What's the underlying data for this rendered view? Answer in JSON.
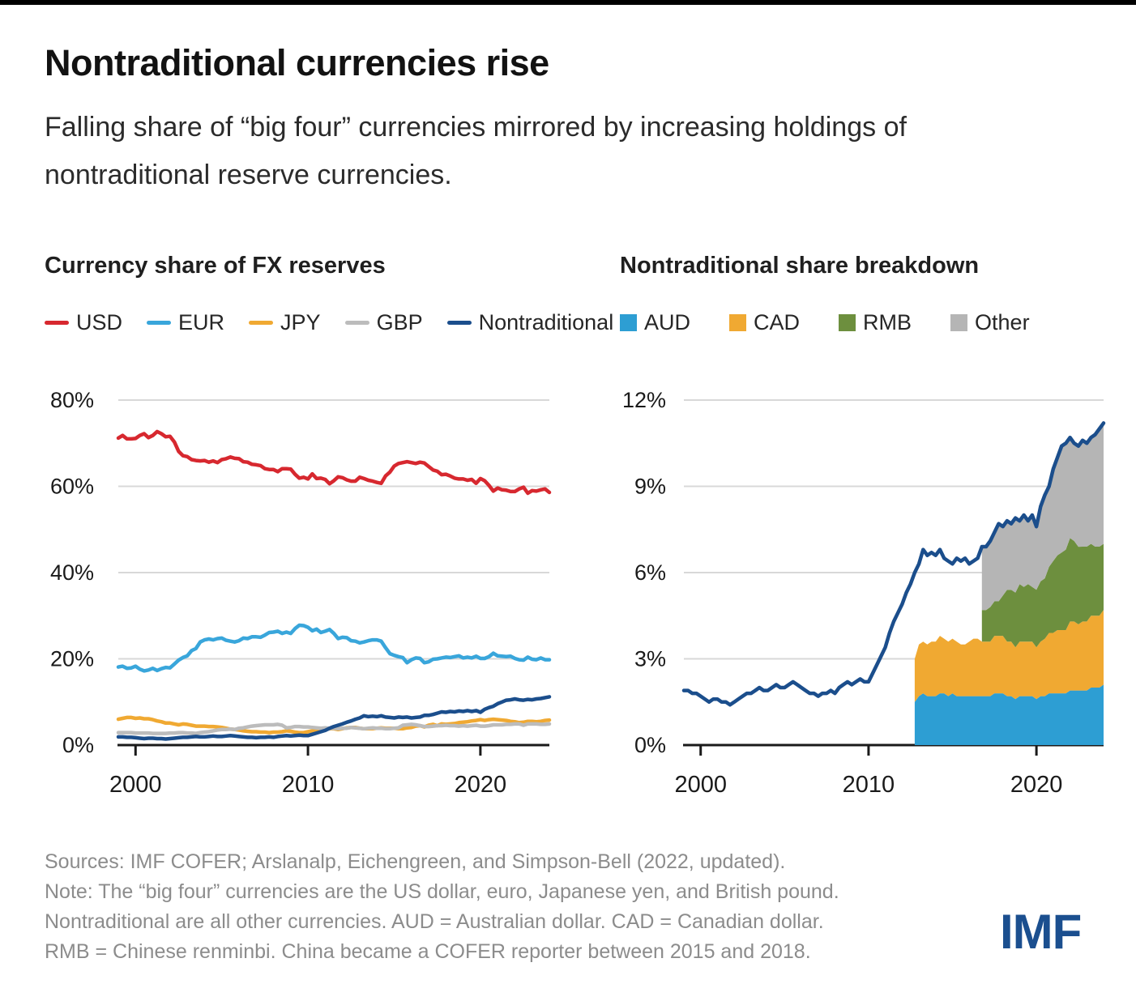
{
  "page": {
    "title": "Nontraditional currencies rise",
    "subtitle": "Falling share of “big four” currencies mirrored by increasing holdings of nontraditional reserve currencies.",
    "footer_lines": [
      "Sources: IMF COFER; Arslanalp, Eichengreen, and Simpson-Bell (2022, updated).",
      "Note: The “big four” currencies are the US dollar, euro, Japanese yen, and British pound.",
      "Nontraditional are all other currencies. AUD = Australian dollar. CAD = Canadian dollar.",
      "RMB = Chinese renminbi. China became a COFER reporter between 2015 and 2018."
    ],
    "logo": "IMF"
  },
  "colors": {
    "grid": "#d8d8d8",
    "axis": "#1a1a1a",
    "tick_label": "#1a1a1a",
    "footer_gray": "#8c8c8c",
    "logo_blue": "#1b4f8f"
  },
  "chart_data": [
    {
      "type": "line",
      "title": "Currency share of FX reserves",
      "quarters": "1999Q1–2024Q1",
      "x_start": 1999,
      "x_step": 0.25,
      "n_points": 101,
      "x_axis": {
        "ticks": [
          2000,
          2010,
          2020
        ],
        "labels": [
          "2000",
          "2010",
          "2020"
        ]
      },
      "y_axis": {
        "ticks": [
          0,
          20,
          40,
          60,
          80
        ],
        "labels": [
          "0%",
          "20%",
          "40%",
          "60%",
          "80%"
        ],
        "lim": [
          0,
          80
        ]
      },
      "grid": true,
      "legend_position": "top",
      "series": [
        {
          "name": "USD",
          "color": "#d7282f",
          "values": [
            71.2,
            71.8,
            71.0,
            71.0,
            71.1,
            71.8,
            72.2,
            71.3,
            71.8,
            72.7,
            72.2,
            71.5,
            71.6,
            70.3,
            68.1,
            67.1,
            66.9,
            66.2,
            66.0,
            65.9,
            66.0,
            65.6,
            65.9,
            65.5,
            66.2,
            66.4,
            66.8,
            66.5,
            66.4,
            65.7,
            65.6,
            65.1,
            65.0,
            64.8,
            64.1,
            63.9,
            63.9,
            63.4,
            64.1,
            64.1,
            64.0,
            62.8,
            61.9,
            62.1,
            61.7,
            62.9,
            61.8,
            61.9,
            61.6,
            60.6,
            61.3,
            62.2,
            62.0,
            61.5,
            61.2,
            61.2,
            62.1,
            61.8,
            61.4,
            61.2,
            60.9,
            60.7,
            62.4,
            63.3,
            64.7,
            65.3,
            65.5,
            65.7,
            65.5,
            65.3,
            65.6,
            65.4,
            64.6,
            63.8,
            63.5,
            62.7,
            62.8,
            62.4,
            61.9,
            61.7,
            61.7,
            61.4,
            61.6,
            60.7,
            61.8,
            61.3,
            60.2,
            58.9,
            59.6,
            59.2,
            59.1,
            58.8,
            58.8,
            59.4,
            59.8,
            58.4,
            59.0,
            58.9,
            59.2,
            59.4,
            58.6
          ]
        },
        {
          "name": "EUR",
          "color": "#39a6db",
          "values": [
            18.1,
            18.3,
            17.8,
            17.9,
            18.3,
            17.6,
            17.2,
            17.4,
            17.8,
            17.3,
            17.7,
            18.0,
            17.9,
            18.8,
            19.7,
            20.3,
            20.7,
            21.9,
            22.4,
            23.9,
            24.4,
            24.6,
            24.4,
            24.7,
            24.8,
            24.3,
            24.1,
            23.9,
            24.2,
            24.8,
            24.7,
            25.1,
            25.1,
            25.0,
            25.5,
            26.1,
            26.2,
            26.4,
            25.9,
            26.2,
            25.9,
            27.0,
            27.8,
            27.7,
            27.3,
            26.5,
            26.9,
            26.1,
            26.4,
            26.8,
            25.9,
            24.7,
            25.0,
            24.9,
            24.2,
            24.1,
            23.7,
            23.9,
            24.2,
            24.4,
            24.4,
            24.1,
            22.6,
            21.2,
            20.8,
            20.5,
            20.3,
            19.1,
            19.8,
            20.2,
            20.1,
            19.1,
            19.3,
            19.9,
            20.0,
            20.2,
            20.4,
            20.3,
            20.5,
            20.7,
            20.2,
            20.4,
            20.2,
            20.6,
            20.1,
            20.1,
            20.5,
            21.3,
            20.7,
            20.6,
            20.5,
            20.6,
            20.1,
            19.8,
            19.7,
            20.4,
            19.9,
            19.8,
            20.2,
            19.8,
            19.8
          ]
        },
        {
          "name": "JPY",
          "color": "#f0a932",
          "values": [
            6.0,
            6.2,
            6.4,
            6.4,
            6.2,
            6.3,
            6.1,
            6.1,
            5.9,
            5.6,
            5.4,
            5.1,
            5.1,
            4.9,
            4.7,
            4.9,
            4.8,
            4.6,
            4.4,
            4.4,
            4.4,
            4.3,
            4.3,
            4.2,
            4.1,
            3.9,
            3.7,
            3.6,
            3.5,
            3.3,
            3.2,
            3.1,
            3.1,
            3.0,
            3.0,
            2.9,
            3.0,
            3.0,
            3.1,
            3.3,
            3.2,
            3.0,
            2.9,
            2.9,
            3.1,
            3.3,
            3.5,
            3.7,
            3.7,
            3.8,
            3.8,
            3.6,
            3.8,
            4.0,
            4.1,
            4.1,
            3.9,
            3.8,
            3.8,
            3.8,
            3.9,
            4.0,
            3.9,
            3.9,
            3.9,
            3.8,
            3.8,
            4.0,
            4.1,
            4.4,
            4.5,
            4.2,
            4.6,
            4.8,
            4.5,
            4.9,
            4.8,
            4.9,
            5.0,
            5.2,
            5.3,
            5.4,
            5.6,
            5.7,
            5.9,
            5.7,
            5.9,
            6.0,
            5.9,
            5.8,
            5.7,
            5.5,
            5.4,
            5.2,
            5.3,
            5.5,
            5.5,
            5.4,
            5.5,
            5.7,
            5.8
          ]
        },
        {
          "name": "GBP",
          "color": "#bcbcbc",
          "values": [
            2.9,
            2.9,
            2.9,
            2.9,
            2.8,
            2.8,
            2.8,
            2.8,
            2.7,
            2.7,
            2.7,
            2.7,
            2.8,
            2.8,
            2.9,
            2.9,
            2.8,
            2.8,
            2.7,
            2.9,
            3.0,
            3.1,
            3.3,
            3.5,
            3.6,
            3.6,
            3.7,
            3.6,
            3.9,
            4.0,
            4.2,
            4.4,
            4.5,
            4.6,
            4.7,
            4.7,
            4.7,
            4.8,
            4.6,
            4.0,
            4.1,
            4.3,
            4.3,
            4.2,
            4.2,
            4.1,
            4.0,
            3.9,
            4.0,
            3.9,
            3.9,
            3.8,
            3.9,
            3.9,
            4.1,
            4.0,
            3.9,
            3.8,
            3.9,
            4.0,
            3.9,
            3.9,
            3.8,
            3.8,
            3.9,
            4.0,
            4.6,
            4.7,
            4.8,
            4.7,
            4.5,
            4.3,
            4.3,
            4.4,
            4.5,
            4.5,
            4.6,
            4.5,
            4.5,
            4.4,
            4.5,
            4.4,
            4.5,
            4.6,
            4.4,
            4.4,
            4.5,
            4.7,
            4.7,
            4.7,
            4.8,
            4.8,
            4.9,
            4.9,
            4.6,
            4.9,
            4.9,
            4.9,
            4.8,
            4.8,
            4.9
          ]
        },
        {
          "name": "Nontraditional",
          "color": "#1b4e8c",
          "values": [
            1.9,
            1.9,
            1.8,
            1.8,
            1.7,
            1.6,
            1.5,
            1.6,
            1.6,
            1.5,
            1.5,
            1.4,
            1.5,
            1.6,
            1.7,
            1.8,
            1.8,
            1.9,
            2.0,
            1.9,
            1.9,
            2.0,
            2.1,
            2.0,
            2.0,
            2.1,
            2.2,
            2.1,
            2.0,
            1.9,
            1.8,
            1.8,
            1.7,
            1.8,
            1.8,
            1.9,
            1.8,
            2.0,
            2.1,
            2.2,
            2.1,
            2.2,
            2.3,
            2.2,
            2.2,
            2.5,
            2.8,
            3.1,
            3.4,
            3.9,
            4.3,
            4.6,
            4.9,
            5.3,
            5.6,
            6.0,
            6.3,
            6.8,
            6.6,
            6.7,
            6.6,
            6.8,
            6.5,
            6.4,
            6.3,
            6.5,
            6.4,
            6.5,
            6.3,
            6.4,
            6.5,
            6.9,
            6.9,
            7.1,
            7.4,
            7.7,
            7.6,
            7.8,
            7.7,
            7.9,
            7.8,
            8.0,
            7.8,
            8.0,
            7.6,
            8.3,
            8.7,
            9.0,
            9.6,
            10.0,
            10.4,
            10.5,
            10.7,
            10.5,
            10.4,
            10.6,
            10.5,
            10.7,
            10.8,
            11.0,
            11.2
          ]
        }
      ]
    },
    {
      "type": "stacked-area-line",
      "title": "Nontraditional share breakdown",
      "quarters": "1999Q1–2024Q1",
      "x_start": 1999,
      "x_step": 0.25,
      "n_points": 101,
      "x_axis": {
        "ticks": [
          2000,
          2010,
          2020
        ],
        "labels": [
          "2000",
          "2010",
          "2020"
        ]
      },
      "y_axis": {
        "ticks": [
          0,
          3,
          6,
          9,
          12
        ],
        "labels": [
          "0%",
          "3%",
          "6%",
          "9%",
          "12%"
        ],
        "lim": [
          0,
          12
        ]
      },
      "grid": true,
      "legend_position": "top",
      "stack_series": [
        {
          "name": "AUD",
          "color": "#2d9ed3",
          "first_quarter": "2012Q4",
          "start_index": 55,
          "values": [
            1.5,
            1.7,
            1.8,
            1.7,
            1.7,
            1.7,
            1.8,
            1.8,
            1.7,
            1.8,
            1.7,
            1.7,
            1.7,
            1.7,
            1.7,
            1.7,
            1.7,
            1.7,
            1.7,
            1.8,
            1.8,
            1.8,
            1.7,
            1.7,
            1.6,
            1.7,
            1.7,
            1.7,
            1.7,
            1.6,
            1.7,
            1.7,
            1.8,
            1.8,
            1.8,
            1.8,
            1.8,
            1.9,
            1.9,
            1.9,
            1.9,
            1.9,
            2.0,
            2.0,
            2.0,
            2.1
          ]
        },
        {
          "name": "CAD",
          "color": "#f0a932",
          "first_quarter": "2012Q4",
          "start_index": 55,
          "values": [
            1.5,
            1.8,
            1.8,
            1.8,
            1.9,
            1.9,
            2.0,
            1.9,
            1.9,
            1.9,
            1.9,
            1.8,
            1.8,
            1.9,
            2.0,
            2.0,
            1.9,
            1.9,
            1.9,
            2.0,
            2.0,
            2.0,
            1.9,
            1.9,
            1.8,
            1.9,
            1.9,
            1.9,
            1.9,
            1.8,
            1.9,
            2.0,
            2.1,
            2.1,
            2.2,
            2.2,
            2.2,
            2.4,
            2.4,
            2.3,
            2.4,
            2.4,
            2.5,
            2.5,
            2.5,
            2.6
          ]
        },
        {
          "name": "RMB",
          "color": "#6d8f3e",
          "first_quarter": "2016Q4",
          "start_index": 71,
          "values": [
            1.1,
            1.1,
            1.2,
            1.2,
            1.2,
            1.4,
            1.8,
            1.8,
            1.9,
            2.0,
            1.9,
            2.0,
            1.9,
            2.0,
            2.1,
            2.1,
            2.3,
            2.5,
            2.6,
            2.7,
            2.8,
            2.9,
            2.8,
            2.7,
            2.6,
            2.6,
            2.5,
            2.4,
            2.4,
            2.3
          ]
        },
        {
          "name": "Other",
          "color": "#b5b5b5",
          "first_quarter": "2016Q4",
          "start_index": 71,
          "values": [
            2.2,
            2.2,
            2.3,
            2.4,
            2.7,
            2.4,
            2.4,
            2.3,
            2.6,
            2.2,
            2.5,
            2.2,
            2.5,
            2.2,
            2.6,
            2.9,
            2.8,
            3.2,
            3.4,
            3.7,
            3.7,
            3.5,
            3.4,
            3.5,
            3.7,
            3.6,
            3.7,
            3.9,
            4.1,
            4.2
          ]
        }
      ],
      "line_series": {
        "name": "Nontraditional total",
        "color": "#1b4e8c",
        "values": [
          1.9,
          1.9,
          1.8,
          1.8,
          1.7,
          1.6,
          1.5,
          1.6,
          1.6,
          1.5,
          1.5,
          1.4,
          1.5,
          1.6,
          1.7,
          1.8,
          1.8,
          1.9,
          2.0,
          1.9,
          1.9,
          2.0,
          2.1,
          2.0,
          2.0,
          2.1,
          2.2,
          2.1,
          2.0,
          1.9,
          1.8,
          1.8,
          1.7,
          1.8,
          1.8,
          1.9,
          1.8,
          2.0,
          2.1,
          2.2,
          2.1,
          2.2,
          2.3,
          2.2,
          2.2,
          2.5,
          2.8,
          3.1,
          3.4,
          3.9,
          4.3,
          4.6,
          4.9,
          5.3,
          5.6,
          6.0,
          6.3,
          6.8,
          6.6,
          6.7,
          6.6,
          6.8,
          6.5,
          6.4,
          6.3,
          6.5,
          6.4,
          6.5,
          6.3,
          6.4,
          6.5,
          6.9,
          6.9,
          7.1,
          7.4,
          7.7,
          7.6,
          7.8,
          7.7,
          7.9,
          7.8,
          8.0,
          7.8,
          8.0,
          7.6,
          8.3,
          8.7,
          9.0,
          9.6,
          10.0,
          10.4,
          10.5,
          10.7,
          10.5,
          10.4,
          10.6,
          10.5,
          10.7,
          10.8,
          11.0,
          11.2
        ]
      }
    }
  ]
}
